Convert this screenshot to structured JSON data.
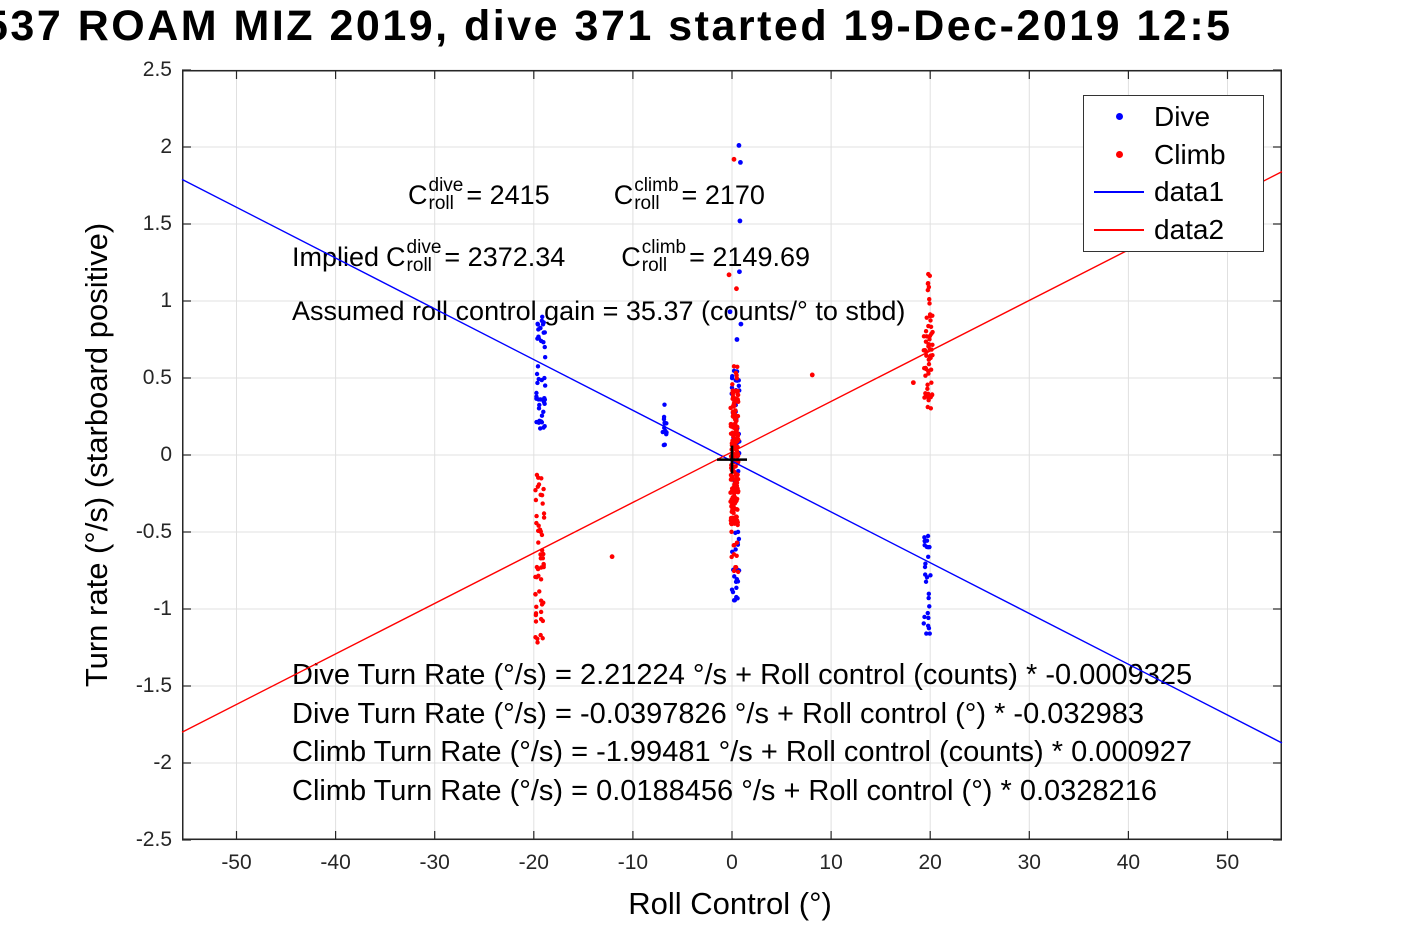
{
  "figure": {
    "title": "537 ROAM MIZ 2019, dive 371 started 19-Dec-2019 12:5"
  },
  "chart_data": {
    "type": "scatter",
    "title": "537 ROAM MIZ 2019, dive 371 started 19-Dec-2019 12:5",
    "xlabel": "Roll Control (°)",
    "ylabel": "Turn rate (°/s) (starboard positive)",
    "xlim": [
      -55.5,
      55.5
    ],
    "ylim": [
      -2.5,
      2.5
    ],
    "xtick_values": [
      -50,
      -40,
      -30,
      -20,
      -10,
      0,
      10,
      20,
      30,
      40,
      50
    ],
    "xtick_labels": [
      "-50",
      "-40",
      "-30",
      "-20",
      "-10",
      "0",
      "10",
      "20",
      "30",
      "40",
      "50"
    ],
    "ytick_values": [
      -2.5,
      -2,
      -1.5,
      -1,
      -0.5,
      0,
      0.5,
      1,
      1.5,
      2,
      2.5
    ],
    "ytick_labels": [
      "-2.5",
      "-2",
      "-1.5",
      "-1",
      "-0.5",
      "0",
      "0.5",
      "1",
      "1.5",
      "2",
      "2.5"
    ],
    "grid": true,
    "legend_position": "northeast",
    "legend_entries": [
      {
        "label": "Dive",
        "marker": "dot",
        "color": "#0000ff"
      },
      {
        "label": "Climb",
        "marker": "dot",
        "color": "#ff0000"
      },
      {
        "label": "data1",
        "marker": "line",
        "color": "#0000ff"
      },
      {
        "label": "data2",
        "marker": "line",
        "color": "#ff0000"
      }
    ],
    "series": [
      {
        "name": "Dive",
        "type": "scatter",
        "color": "#0000ff",
        "clusters": [
          {
            "x": -19.3,
            "x_jitter": 0.45,
            "y_range": [
              0.17,
              0.92
            ],
            "n": 48
          },
          {
            "x": -6.8,
            "x_jitter": 0.25,
            "y_range": [
              0.05,
              0.36
            ],
            "n": 13
          },
          {
            "x": 0.35,
            "x_jitter": 0.4,
            "y_range": [
              -0.97,
              0.62
            ],
            "n": 55
          },
          {
            "x": 19.7,
            "x_jitter": 0.4,
            "y_range": [
              -1.18,
              -0.5
            ],
            "n": 26
          }
        ],
        "points": [
          [
            0.7,
            2.01
          ],
          [
            0.85,
            1.9
          ],
          [
            0.8,
            1.52
          ],
          [
            0.75,
            1.19
          ],
          [
            -0.2,
            0.93
          ],
          [
            0.9,
            0.85
          ],
          [
            0.5,
            0.75
          ]
        ]
      },
      {
        "name": "Climb",
        "type": "scatter",
        "color": "#ff0000",
        "clusters": [
          {
            "x": -19.4,
            "x_jitter": 0.45,
            "y_range": [
              -1.22,
              -0.12
            ],
            "n": 55
          },
          {
            "x": 0.25,
            "x_jitter": 0.4,
            "y_range": [
              -0.45,
              0.42
            ],
            "n": 150
          },
          {
            "x": 0.3,
            "x_jitter": 0.35,
            "y_range": [
              -0.8,
              0.58
            ],
            "n": 60
          },
          {
            "x": 19.8,
            "x_jitter": 0.45,
            "y_range": [
              0.3,
              0.97
            ],
            "n": 55
          },
          {
            "x": 19.9,
            "x_jitter": 0.25,
            "y_range": [
              0.98,
              1.18
            ],
            "n": 8
          }
        ],
        "points": [
          [
            -12.1,
            -0.66
          ],
          [
            8.1,
            0.52
          ],
          [
            18.3,
            0.47
          ],
          [
            0.2,
            1.92
          ],
          [
            -0.3,
            1.17
          ],
          [
            0.45,
            1.08
          ]
        ]
      },
      {
        "name": "data1",
        "type": "line",
        "color": "#0000ff",
        "points": [
          [
            -55.5,
            1.79
          ],
          [
            55.5,
            -1.87
          ]
        ]
      },
      {
        "name": "data2",
        "type": "line",
        "color": "#ff0000",
        "points": [
          [
            -55.5,
            -1.8
          ],
          [
            55.5,
            1.84
          ]
        ]
      }
    ],
    "origin_marker": {
      "x": 0,
      "y": -0.03,
      "style": "plus",
      "color": "#000000"
    },
    "annotations": [
      "C_roll^dive = 2415      C_roll^climb = 2170",
      "Implied C_roll^dive = 2372.34      C_roll^climb = 2149.69",
      "Assumed roll control gain = 35.37 (counts/° to stbd)"
    ],
    "equations": [
      "Dive Turn Rate (°/s) = 2.21224 °/s + Roll control (counts) * -0.0009325",
      "Dive Turn Rate (°/s) = -0.0397826 °/s + Roll control (°) * -0.032983",
      "Climb Turn Rate (°/s) = -1.99481 °/s + Roll control (counts) * 0.000927",
      "Climb Turn Rate (°/s) = 0.0188456 °/s + Roll control (°) * 0.0328216"
    ]
  },
  "annotations": {
    "row1": [
      {
        "prefix": "",
        "base": "C",
        "sup": "dive",
        "sub": "roll",
        "rhs": " = 2415"
      },
      {
        "prefix": "",
        "base": "C",
        "sup": "climb",
        "sub": "roll",
        "rhs": " = 2170"
      }
    ],
    "row2": [
      {
        "prefix": "Implied",
        "base": "C",
        "sup": "dive",
        "sub": "roll",
        "rhs": " = 2372.34"
      },
      {
        "prefix": "",
        "base": "C",
        "sup": "climb",
        "sub": "roll",
        "rhs": " = 2149.69"
      }
    ],
    "row3": "Assumed roll control gain = 35.37 (counts/° to stbd)"
  },
  "colors": {
    "dive": "#0000ff",
    "climb": "#ff0000",
    "grid": "#e0e0e0",
    "axis": "#262626",
    "text": "#000000",
    "background": "#ffffff"
  }
}
